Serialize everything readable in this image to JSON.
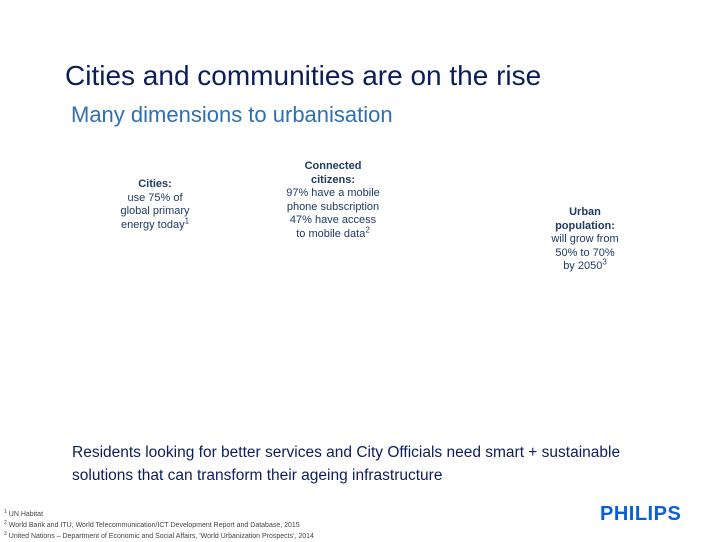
{
  "header": {
    "title": "Cities and communities are on the rise",
    "subtitle": "Many dimensions to urbanisation"
  },
  "stats": {
    "cities": {
      "label": "Cities:",
      "text": "use 75% of\nglobal primary\nenergy today",
      "ref": "1"
    },
    "connected": {
      "label": "Connected\ncitizens:",
      "text": "97% have a mobile\nphone subscription\n47% have access\nto mobile data",
      "ref": "2"
    },
    "urban": {
      "label": "Urban\npopulation:",
      "text": "will grow from\n50% to 70%\nby 2050",
      "ref": "3"
    }
  },
  "conclusion": "Residents looking for better services and  City Officials need smart + sustainable solutions that can transform their ageing infrastructure",
  "footnotes": [
    {
      "num": "1",
      "text": "UN Habitat"
    },
    {
      "num": "2",
      "text": "World Bank and ITU, World Telecommunication/ICT Development Report and Database, 2015"
    },
    {
      "num": "3",
      "text": "United Nations – Department of Economic and Social Affairs, 'World Urbanization Prospects', 2014"
    }
  ],
  "logo": {
    "text": "PHILIPS",
    "color": "#0b5ed7"
  },
  "colors": {
    "title": "#0b1e5b",
    "subtitle": "#2f6fb3"
  }
}
